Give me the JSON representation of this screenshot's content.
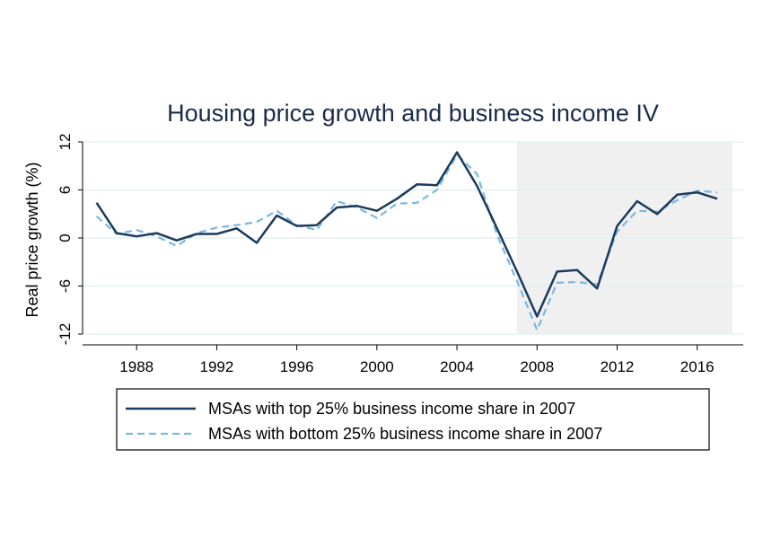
{
  "chart_data": {
    "type": "line",
    "title": "Housing price growth and business income IV",
    "xlabel": "",
    "ylabel": "Real price growth (%)",
    "xlim": [
      1985.3,
      2018.3
    ],
    "ylim": [
      -12,
      12
    ],
    "xticks": [
      "1988",
      "1992",
      "1996",
      "2000",
      "2004",
      "2008",
      "2012",
      "2016"
    ],
    "yticks": [
      "12",
      "6",
      "0",
      "-6",
      "-12"
    ],
    "grid": true,
    "shaded_region": {
      "x_start": 2007,
      "x_end": 2018,
      "color": "#f0f0f0"
    },
    "legend_position": "bottom",
    "x": [
      1986,
      1987,
      1988,
      1989,
      1990,
      1991,
      1992,
      1993,
      1994,
      1995,
      1996,
      1997,
      1998,
      1999,
      2000,
      2001,
      2002,
      2003,
      2004,
      2005,
      2006,
      2007,
      2008,
      2009,
      2010,
      2011,
      2012,
      2013,
      2014,
      2015,
      2016,
      2017
    ],
    "series": [
      {
        "name": "MSAs with top 25% business income share in 2007",
        "color": "#1b3a5c",
        "style": "solid",
        "values": [
          4.4,
          0.6,
          0.2,
          0.6,
          -0.3,
          0.5,
          0.5,
          1.2,
          -0.6,
          2.8,
          1.5,
          1.6,
          3.8,
          4.0,
          3.4,
          4.9,
          6.7,
          6.6,
          10.7,
          6.5,
          1.2,
          -4.2,
          -9.8,
          -4.2,
          -4.0,
          -6.3,
          1.5,
          4.6,
          3.0,
          5.4,
          5.7,
          4.9
        ],
        "width": 2.5
      },
      {
        "name": "MSAs with bottom 25% business income share in 2007",
        "color": "#7ab8e0",
        "style": "dashed",
        "values": [
          2.7,
          0.5,
          1.0,
          0.2,
          -1.0,
          0.6,
          1.3,
          1.6,
          2.0,
          3.4,
          1.6,
          1.0,
          4.6,
          3.8,
          2.5,
          4.3,
          4.4,
          6.0,
          10.4,
          8.0,
          0.4,
          -5.4,
          -11.5,
          -5.6,
          -5.5,
          -5.8,
          0.8,
          3.4,
          3.3,
          4.7,
          5.9,
          5.7
        ],
        "width": 2.2
      }
    ]
  }
}
